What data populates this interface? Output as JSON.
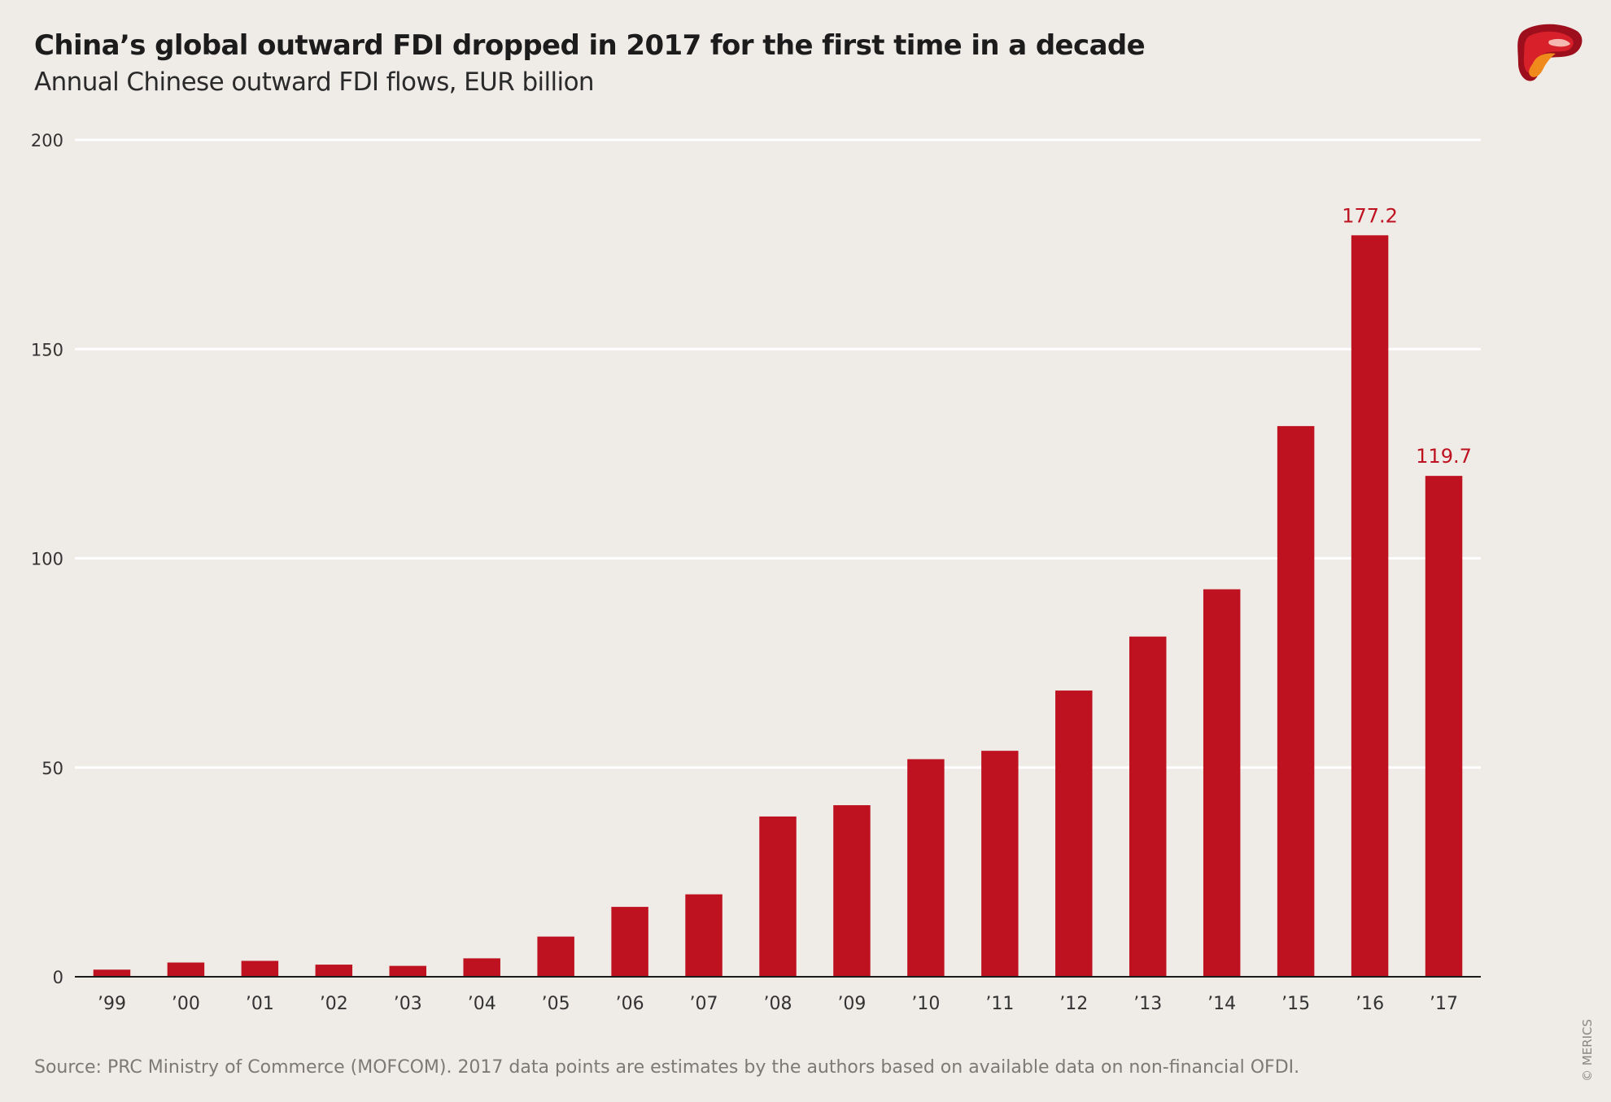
{
  "header": {
    "title": "China’s global outward FDI dropped in 2017 for the first time in a decade",
    "subtitle": "Annual Chinese outward FDI flows, EUR billion"
  },
  "footer": {
    "source": "Source: PRC Ministry of Commerce (MOFCOM). 2017 data points are estimates by the authors based on available data on non-financial OFDI.",
    "copyright": "© MERICS"
  },
  "logo": {
    "icon": "merics-logo-icon"
  },
  "colors": {
    "bar": "#be1220",
    "grid": "#ffffff",
    "axis": "#1c1c1c",
    "label": "#be1220",
    "tick": "#333333"
  },
  "chart_data": {
    "type": "bar",
    "categories": [
      "’99",
      "’00",
      "’01",
      "’02",
      "’03",
      "’04",
      "’05",
      "’06",
      "’07",
      "’08",
      "’09",
      "’10",
      "’11",
      "’12",
      "’13",
      "’14",
      "’15",
      "’16",
      "’17"
    ],
    "values": [
      1.7,
      3.4,
      3.8,
      2.9,
      2.6,
      4.4,
      9.6,
      16.7,
      19.7,
      38.3,
      41.0,
      52.0,
      54.0,
      68.4,
      81.3,
      92.6,
      131.6,
      177.2,
      119.7
    ],
    "ylim": [
      0,
      200
    ],
    "yticks": [
      0,
      50,
      100,
      150,
      200
    ],
    "data_labels": [
      {
        "category": "’16",
        "text": "177.2"
      },
      {
        "category": "’17",
        "text": "119.7"
      }
    ],
    "grid": true
  }
}
